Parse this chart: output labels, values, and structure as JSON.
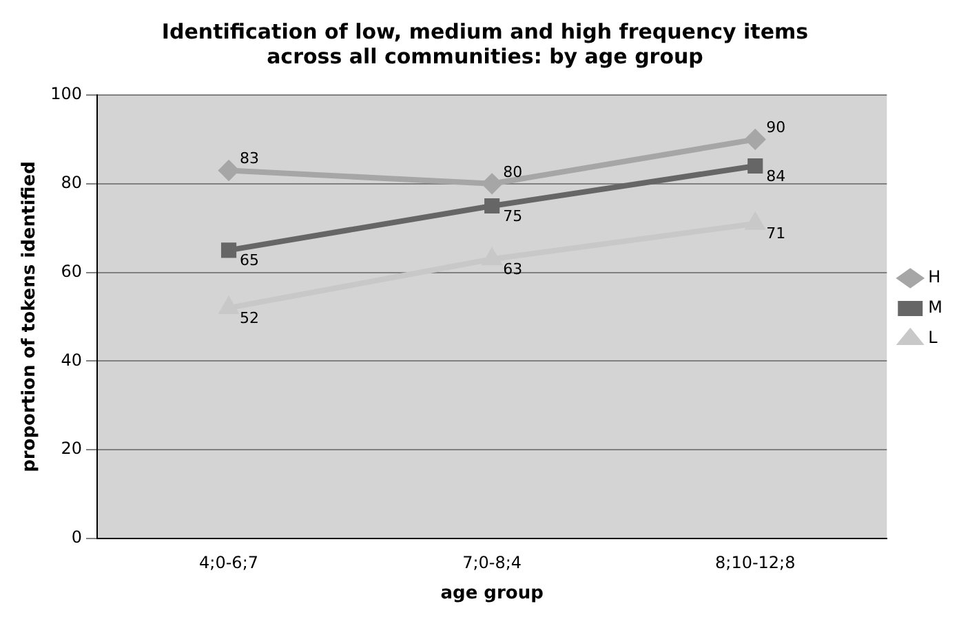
{
  "chart_data": {
    "type": "line",
    "title": "Identification of low, medium and high frequency items across all communities: by age group",
    "xlabel": "age group",
    "ylabel": "proportion of tokens identified",
    "categories": [
      "4;0-6;7",
      "7;0-8;4",
      "8;10-12;8"
    ],
    "series": [
      {
        "name": "H",
        "color": "#a6a6a6",
        "marker": "diamond",
        "values": [
          83,
          80,
          90
        ]
      },
      {
        "name": "M",
        "color": "#666666",
        "marker": "square",
        "values": [
          65,
          75,
          84
        ]
      },
      {
        "name": "L",
        "color": "#c8c8c8",
        "marker": "triangle",
        "values": [
          52,
          63,
          71
        ]
      }
    ],
    "ylim": [
      0,
      100
    ],
    "yticks": [
      0,
      20,
      40,
      60,
      80,
      100
    ],
    "grid": "y",
    "legend": "right",
    "data_labels": true
  }
}
